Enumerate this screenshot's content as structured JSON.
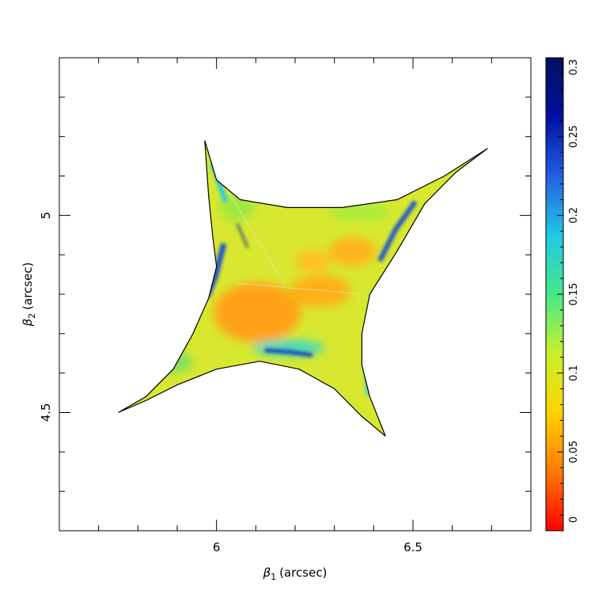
{
  "chart_data": {
    "type": "heatmap",
    "x": {
      "label_symbol": "β",
      "label_subscript": "1",
      "label_unit": "(arcsec)",
      "range": [
        5.6,
        6.8
      ],
      "major_ticks": [
        6,
        6.5
      ],
      "major_tick_labels": [
        "6",
        "6.5"
      ],
      "minor_step": 0.1
    },
    "y": {
      "label_symbol": "β",
      "label_subscript": "2",
      "label_unit": "(arcsec)",
      "range": [
        4.2,
        5.4
      ],
      "major_ticks": [
        4.5,
        5
      ],
      "major_tick_labels": [
        "4.5",
        "5"
      ],
      "minor_step": 0.1
    },
    "caustic_outline": [
      [
        5.97,
        5.19
      ],
      [
        6.0,
        5.09
      ],
      [
        6.06,
        5.04
      ],
      [
        6.18,
        5.02
      ],
      [
        6.32,
        5.02
      ],
      [
        6.46,
        5.04
      ],
      [
        6.58,
        5.1
      ],
      [
        6.69,
        5.17
      ],
      [
        6.61,
        5.11
      ],
      [
        6.53,
        5.03
      ],
      [
        6.46,
        4.91
      ],
      [
        6.39,
        4.8
      ],
      [
        6.37,
        4.7
      ],
      [
        6.37,
        4.62
      ],
      [
        6.39,
        4.54
      ],
      [
        6.43,
        4.44
      ],
      [
        6.37,
        4.49
      ],
      [
        6.3,
        4.56
      ],
      [
        6.21,
        4.61
      ],
      [
        6.11,
        4.63
      ],
      [
        6.0,
        4.61
      ],
      [
        5.9,
        4.57
      ],
      [
        5.82,
        4.53
      ],
      [
        5.75,
        4.5
      ],
      [
        5.82,
        4.54
      ],
      [
        5.89,
        4.61
      ],
      [
        5.94,
        4.7
      ],
      [
        5.98,
        4.79
      ],
      [
        6.0,
        4.87
      ],
      [
        5.99,
        4.95
      ],
      [
        5.98,
        5.05
      ],
      [
        5.97,
        5.19
      ]
    ],
    "colorbar": {
      "range": [
        0,
        0.3
      ],
      "ticks": [
        0,
        0.05,
        0.1,
        0.15,
        0.2,
        0.25,
        0.3
      ],
      "tick_labels": [
        "0",
        "0.05",
        "0.1",
        "0.15",
        "0.2",
        "0.25",
        "0.3"
      ],
      "colors": [
        "#ff0000",
        "#ff7a00",
        "#ffd200",
        "#c8f02a",
        "#46e88a",
        "#20c8e6",
        "#2260e0",
        "#0010a0",
        "#001060"
      ]
    },
    "grid": false,
    "legend": "colorbar-right"
  }
}
